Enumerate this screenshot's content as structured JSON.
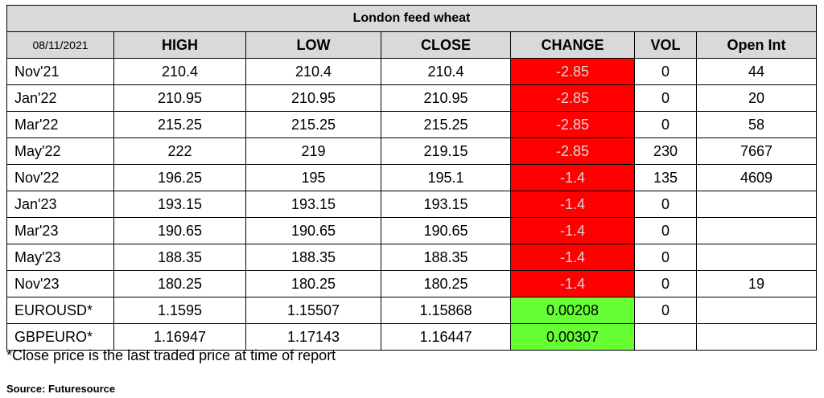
{
  "title": "London feed wheat",
  "headers": {
    "date": "08/11/2021",
    "high": "HIGH",
    "low": "LOW",
    "close": "CLOSE",
    "change": "CHANGE",
    "vol": "VOL",
    "open_int": "Open Int"
  },
  "colors": {
    "header_bg": "#d9d9d9",
    "negative_change_bg": "#ff0000",
    "positive_change_bg": "#66ff33"
  },
  "rows": [
    {
      "contract": "Nov'21",
      "high": "210.4",
      "low": "210.4",
      "close": "210.4",
      "change": "-2.85",
      "vol": "0",
      "open_int": "44",
      "change_sign": "neg"
    },
    {
      "contract": "Jan'22",
      "high": "210.95",
      "low": "210.95",
      "close": "210.95",
      "change": "-2.85",
      "vol": "0",
      "open_int": "20",
      "change_sign": "neg"
    },
    {
      "contract": "Mar'22",
      "high": "215.25",
      "low": "215.25",
      "close": "215.25",
      "change": "-2.85",
      "vol": "0",
      "open_int": "58",
      "change_sign": "neg"
    },
    {
      "contract": "May'22",
      "high": "222",
      "low": "219",
      "close": "219.15",
      "change": "-2.85",
      "vol": "230",
      "open_int": "7667",
      "change_sign": "neg"
    },
    {
      "contract": "Nov'22",
      "high": "196.25",
      "low": "195",
      "close": "195.1",
      "change": "-1.4",
      "vol": "135",
      "open_int": "4609",
      "change_sign": "neg"
    },
    {
      "contract": "Jan'23",
      "high": "193.15",
      "low": "193.15",
      "close": "193.15",
      "change": "-1.4",
      "vol": "0",
      "open_int": "",
      "change_sign": "neg"
    },
    {
      "contract": "Mar'23",
      "high": "190.65",
      "low": "190.65",
      "close": "190.65",
      "change": "-1.4",
      "vol": "0",
      "open_int": "",
      "change_sign": "neg"
    },
    {
      "contract": "May'23",
      "high": "188.35",
      "low": "188.35",
      "close": "188.35",
      "change": "-1.4",
      "vol": "0",
      "open_int": "",
      "change_sign": "neg"
    },
    {
      "contract": "Nov'23",
      "high": "180.25",
      "low": "180.25",
      "close": "180.25",
      "change": "-1.4",
      "vol": "0",
      "open_int": "19",
      "change_sign": "neg"
    },
    {
      "contract": "EUROUSD*",
      "high": "1.1595",
      "low": "1.15507",
      "close": "1.15868",
      "change": "0.00208",
      "vol": "0",
      "open_int": "",
      "change_sign": "pos"
    },
    {
      "contract": "GBPEURO*",
      "high": "1.16947",
      "low": "1.17143",
      "close": "1.16447",
      "change": "0.00307",
      "vol": "",
      "open_int": "",
      "change_sign": "pos"
    }
  ],
  "footnote": "*Close price is the last traded price at time of report",
  "source": "Source: Futuresource"
}
